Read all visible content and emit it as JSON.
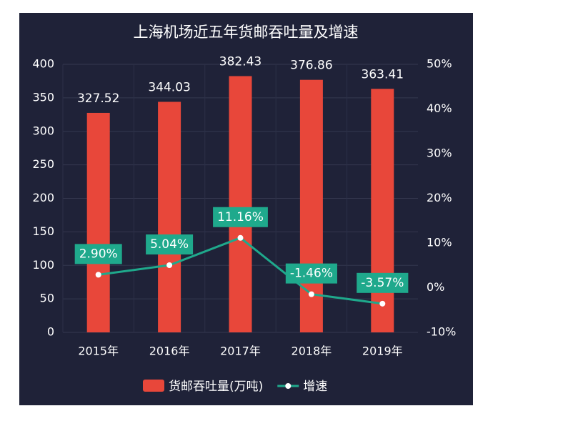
{
  "chart_data": {
    "type": "bar-line",
    "title": "上海机场近五年货邮吞吐量及增速",
    "categories": [
      "2015年",
      "2016年",
      "2017年",
      "2018年",
      "2019年"
    ],
    "series": [
      {
        "name": "货邮吞吐量(万吨)",
        "type": "bar",
        "axis": "y",
        "color": "#e8473a",
        "values": [
          327.52,
          344.03,
          382.43,
          376.86,
          363.41
        ]
      },
      {
        "name": "增速",
        "type": "line",
        "axis": "y2",
        "color": "#1fa98c",
        "values": [
          2.9,
          5.04,
          11.16,
          -1.46,
          -3.57
        ],
        "value_labels": [
          "2.90%",
          "5.04%",
          "11.16%",
          "-1.46%",
          "-3.57%"
        ]
      }
    ],
    "ylim": [
      0,
      400
    ],
    "yticks": [
      0,
      50,
      100,
      150,
      200,
      250,
      300,
      350,
      400
    ],
    "y2lim": [
      -10,
      50
    ],
    "y2ticks": [
      {
        "value": -10,
        "label": "-10%"
      },
      {
        "value": 0,
        "label": "0%"
      },
      {
        "value": 10,
        "label": "10%"
      },
      {
        "value": 20,
        "label": "20%"
      },
      {
        "value": 30,
        "label": "30%"
      },
      {
        "value": 40,
        "label": "40%"
      },
      {
        "value": 50,
        "label": "50%"
      }
    ],
    "grid": true,
    "legend": "bottom"
  }
}
